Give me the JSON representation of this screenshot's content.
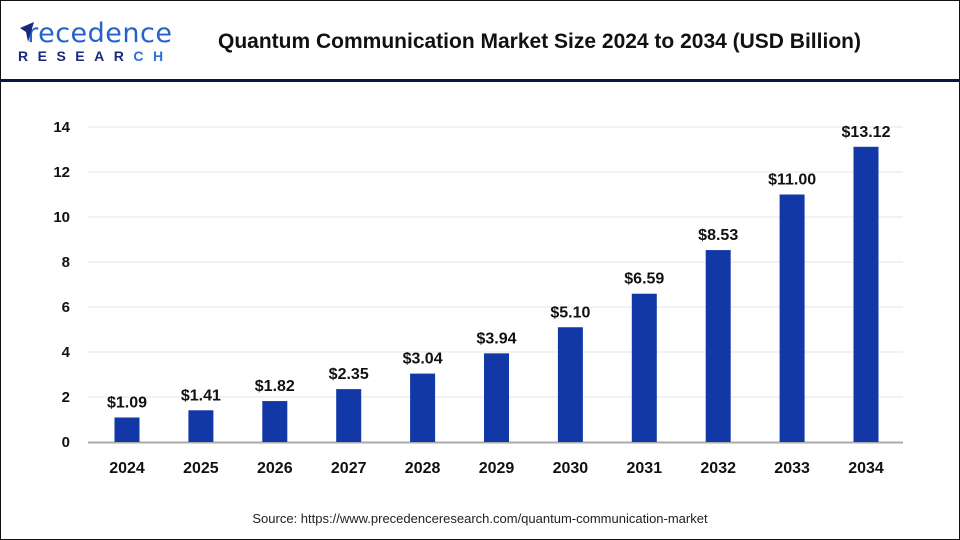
{
  "logo": {
    "line1": "Precedence",
    "line2": "RESEARCH"
  },
  "source": "Source: https://www.precedenceresearch.com/quantum-communication-market",
  "colors": {
    "bar": "#1238a8",
    "header_line": "#0d1640",
    "grid": "#e6e6e6"
  },
  "chart_data": {
    "type": "bar",
    "title": "Quantum Communication Market Size 2024 to 2034 (USD Billion)",
    "categories": [
      "2024",
      "2025",
      "2026",
      "2027",
      "2028",
      "2029",
      "2030",
      "2031",
      "2032",
      "2033",
      "2034"
    ],
    "values": [
      1.09,
      1.41,
      1.82,
      2.35,
      3.04,
      3.94,
      5.1,
      6.59,
      8.53,
      11.0,
      13.12
    ],
    "data_labels": [
      "$1.09",
      "$1.41",
      "$1.82",
      "$2.35",
      "$3.04",
      "$3.94",
      "$5.10",
      "$6.59",
      "$8.53",
      "$11.00",
      "$13.12"
    ],
    "yticks": [
      0,
      2,
      4,
      6,
      8,
      10,
      12,
      14
    ],
    "ylim": [
      0,
      14
    ],
    "grid": true,
    "xlabel": "",
    "ylabel": ""
  }
}
